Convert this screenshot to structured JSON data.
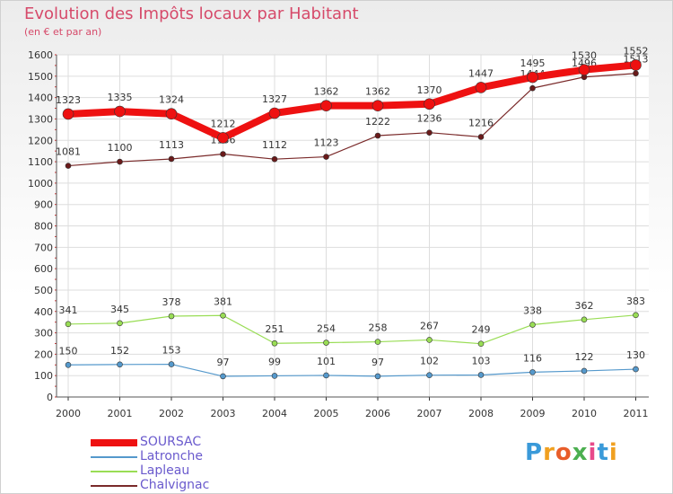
{
  "title": "Evolution des Impôts locaux par Habitant",
  "subtitle": "(en € et par an)",
  "logo": {
    "text": "Proxiti"
  },
  "chart_data": {
    "type": "line",
    "title": "Evolution des Impôts locaux par Habitant",
    "subtitle": "(en € et par an)",
    "xlabel": "",
    "ylabel": "",
    "ylim": [
      0,
      1600
    ],
    "yticks": [
      0,
      100,
      200,
      300,
      400,
      500,
      600,
      700,
      800,
      900,
      1000,
      1100,
      1200,
      1300,
      1400,
      1500,
      1600
    ],
    "grid": true,
    "legend_position": "bottom-left",
    "x": [
      "2000",
      "2001",
      "2002",
      "2003",
      "2004",
      "2005",
      "2006",
      "2007",
      "2008",
      "2009",
      "2010",
      "2011"
    ],
    "series": [
      {
        "name": "SOURSAC",
        "color": "#ee1111",
        "values": [
          1323,
          1335,
          1324,
          1212,
          1327,
          1362,
          1362,
          1370,
          1447,
          1495,
          1530,
          1552
        ]
      },
      {
        "name": "Latronche",
        "color": "#5599cc",
        "values": [
          150,
          152,
          153,
          97,
          99,
          101,
          97,
          102,
          103,
          116,
          122,
          130
        ]
      },
      {
        "name": "Lapleau",
        "color": "#99dd55",
        "values": [
          341,
          345,
          378,
          381,
          251,
          254,
          258,
          267,
          249,
          338,
          362,
          383
        ]
      },
      {
        "name": "Chalvignac",
        "color": "#7a2a2a",
        "values": [
          1081,
          1100,
          1113,
          1136,
          1112,
          1123,
          1222,
          1236,
          1216,
          1444,
          1496,
          1513
        ]
      }
    ]
  }
}
